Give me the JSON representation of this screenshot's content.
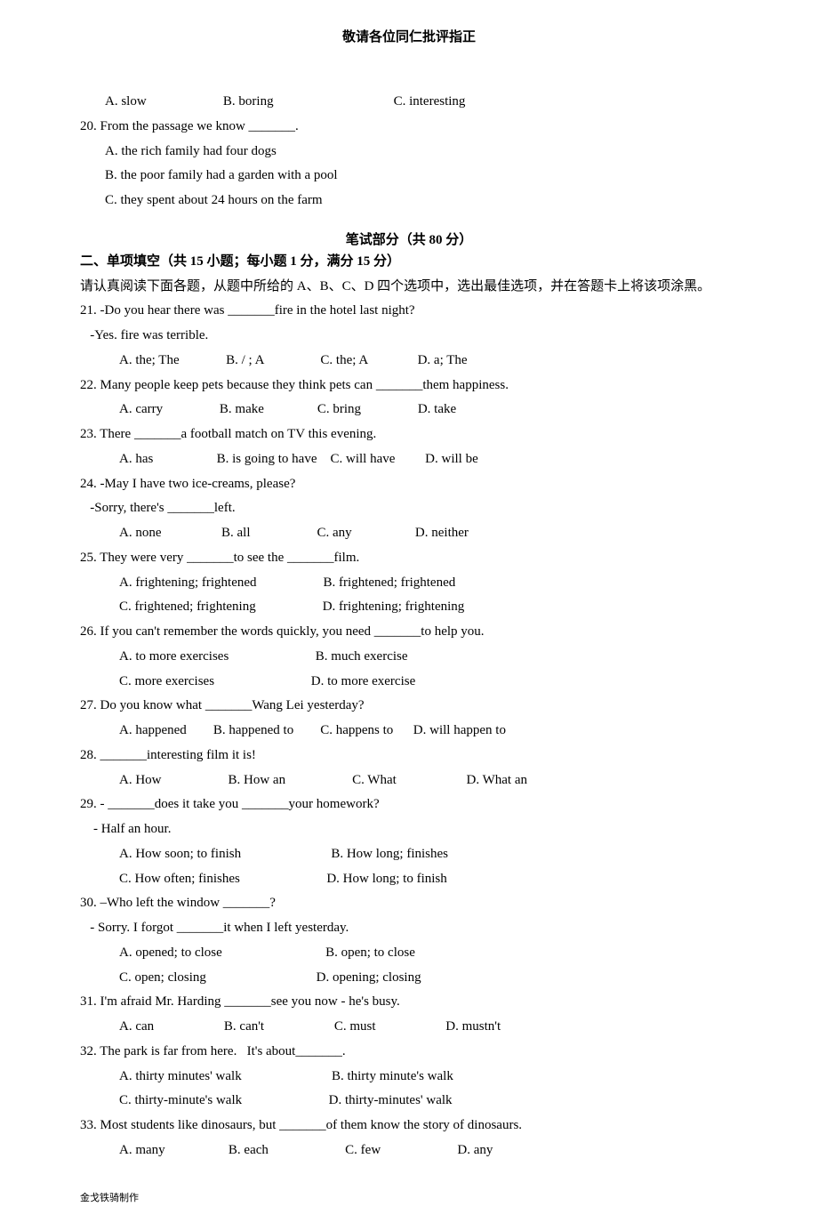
{
  "header": {
    "title": "敬请各位同仁批评指正"
  },
  "q19_opts": {
    "a": "A. slow",
    "b": "B. boring",
    "c": "C. interesting"
  },
  "q20": {
    "stem": "20. From the passage we know _______.",
    "a": "A. the rich family had four dogs",
    "b": "B. the poor family had a garden with a pool",
    "c": "C. they spent about 24 hours on the farm"
  },
  "section2": {
    "title": "笔试部分（共 80 分）",
    "sub": "二、单项填空（共 15 小题；每小题 1 分，满分 15 分）",
    "instr": "请认真阅读下面各题，从题中所给的 A、B、C、D 四个选项中，选出最佳选项，并在答题卡上将该项涂黑。"
  },
  "q21": {
    "stem": "21. -Do you hear there was _______fire in the hotel last night?",
    "cont": "   -Yes. fire was terrible.",
    "a": "A. the; The",
    "b": "B. / ; A",
    "c": "C. the; A",
    "d": "D. a; The"
  },
  "q22": {
    "stem": "22. Many people keep pets because they think pets can _______them happiness.",
    "a": "A. carry",
    "b": "B. make",
    "c": "C. bring",
    "d": "D. take"
  },
  "q23": {
    "stem": "23. There _______a football match on TV this evening.",
    "a": "A. has",
    "b": "B. is going to have",
    "c": "C. will have",
    "d": "D. will be"
  },
  "q24": {
    "stem": "24. -May I have two ice-creams, please?",
    "cont": "   -Sorry, there's _______left.",
    "a": "A. none",
    "b": "B. all",
    "c": "C. any",
    "d": "D. neither"
  },
  "q25": {
    "stem": "25. They were very _______to see the _______film.",
    "a": "A. frightening; frightened",
    "b": "B. frightened; frightened",
    "c": "C. frightened; frightening",
    "d": "D. frightening; frightening"
  },
  "q26": {
    "stem": "26. If you can't remember the words quickly, you need _______to help you.",
    "a": "A. to more exercises",
    "b": "B. much exercise",
    "c": "C. more exercises",
    "d": "D. to more exercise"
  },
  "q27": {
    "stem": "27. Do you know what _______Wang Lei yesterday?",
    "a": "A. happened",
    "b": "B. happened to",
    "c": "C. happens to",
    "d": "D. will happen to"
  },
  "q28": {
    "stem": "28. _______interesting film it is!",
    "a": "A. How",
    "b": "B. How an",
    "c": "C. What",
    "d": "D. What an"
  },
  "q29": {
    "stem": "29. - _______does it take you _______your homework?",
    "cont": "    - Half an hour.",
    "a": "A. How soon; to finish",
    "b": "B. How long; finishes",
    "c": "C. How often; finishes",
    "d": "D. How long; to finish"
  },
  "q30": {
    "stem": "30. –Who left the window _______?",
    "cont": "   - Sorry. I forgot _______it when I left yesterday.",
    "a": "A. opened; to close",
    "b": "B. open; to close",
    "c": "C. open; closing",
    "d": "D. opening; closing"
  },
  "q31": {
    "stem": "31. I'm afraid Mr. Harding _______see you now - he's busy.",
    "a": "A. can",
    "b": "B. can't",
    "c": "C. must",
    "d": "D. mustn't"
  },
  "q32": {
    "stem": "32. The park is far from here.   It's about_______.",
    "a": "A. thirty minutes' walk",
    "b": "B. thirty minute's walk",
    "c": "C. thirty-minute's walk",
    "d": "D. thirty-minutes' walk"
  },
  "q33": {
    "stem": "33. Most students like dinosaurs, but _______of them know the story of dinosaurs.",
    "a": "A. many",
    "b": "B. each",
    "c": "C. few",
    "d": "D. any"
  },
  "footer": {
    "text": "金戈铁骑制作"
  }
}
